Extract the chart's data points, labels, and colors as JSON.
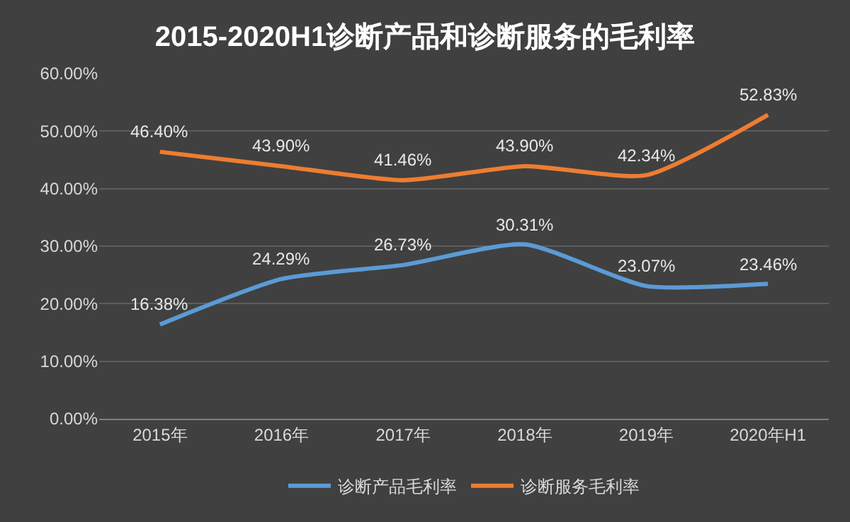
{
  "chart_data": {
    "type": "line",
    "title": "2015-2020H1诊断产品和诊断服务的毛利率",
    "categories": [
      "2015年",
      "2016年",
      "2017年",
      "2018年",
      "2019年",
      "2020年H1"
    ],
    "series": [
      {
        "name": "诊断产品毛利率",
        "color": "#5b9bd5",
        "values": [
          16.38,
          24.29,
          26.73,
          30.31,
          23.07,
          23.46
        ],
        "value_labels": [
          "16.38%",
          "24.29%",
          "26.73%",
          "30.31%",
          "23.07%",
          "23.46%"
        ]
      },
      {
        "name": "诊断服务毛利率",
        "color": "#ed7d31",
        "values": [
          46.4,
          43.9,
          41.46,
          43.9,
          42.34,
          52.83
        ],
        "value_labels": [
          "46.40%",
          "43.90%",
          "41.46%",
          "43.90%",
          "42.34%",
          "52.83%"
        ]
      }
    ],
    "ylim": [
      0,
      60
    ],
    "yticks": [
      {
        "value": 0,
        "label": "0.00%"
      },
      {
        "value": 10,
        "label": "10.00%"
      },
      {
        "value": 20,
        "label": "20.00%"
      },
      {
        "value": 30,
        "label": "30.00%"
      },
      {
        "value": 40,
        "label": "40.00%"
      },
      {
        "value": 50,
        "label": "50.00%"
      },
      {
        "value": 60,
        "label": "60.00%"
      }
    ],
    "grid": "y",
    "legend": "bottom",
    "marker": "none",
    "line_style": "solid"
  }
}
